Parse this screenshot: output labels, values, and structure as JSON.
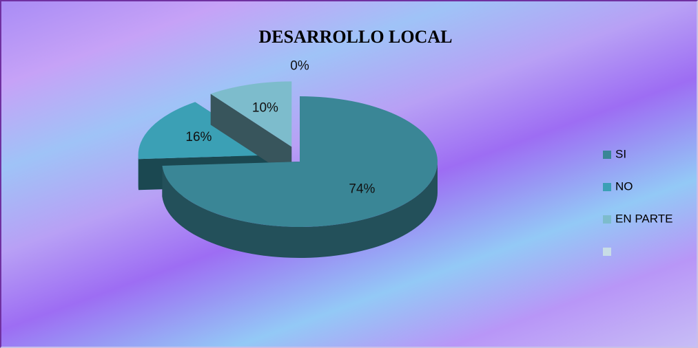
{
  "chart_data": {
    "type": "pie",
    "title": "DESARROLLO LOCAL",
    "categories": [
      "SI",
      "NO",
      "EN PARTE",
      null
    ],
    "values": [
      74,
      16,
      10,
      0
    ],
    "value_labels": [
      "74%",
      "16%",
      "10%",
      "0%"
    ],
    "colors": [
      "#3a8696",
      "#3ba0b5",
      "#7dbccc",
      "#c8dde6"
    ],
    "legend": "right"
  }
}
